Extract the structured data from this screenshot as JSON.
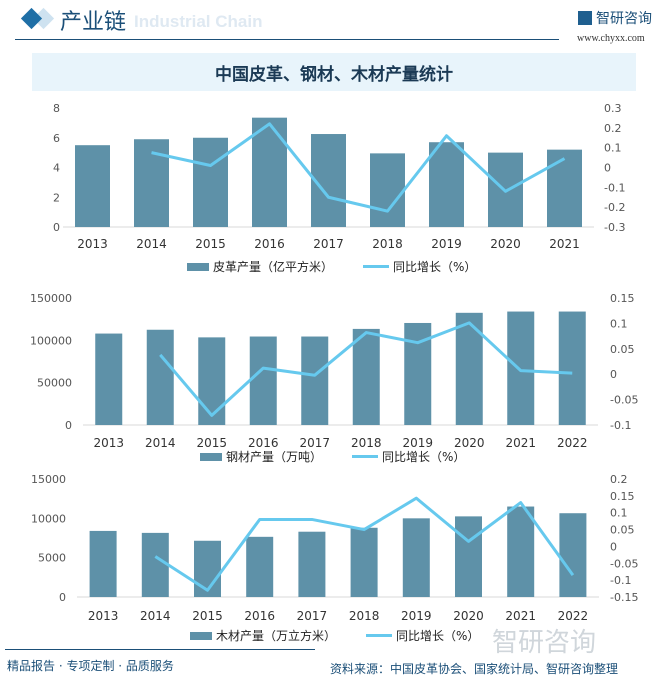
{
  "header": {
    "title": "产业链",
    "subtitle": "Industrial Chain",
    "logo_text": "智研咨询",
    "url": "www.chyxx.com"
  },
  "main_title": "中国皮革、钢材、木材产量统计",
  "footer": {
    "left": "精品报告 · 专项定制 · 品质服务",
    "source": "资料来源：中国皮革协会、国家统计局、智研咨询整理",
    "watermark": "智研咨询"
  },
  "colors": {
    "bar": "#5e91a8",
    "line": "#66c9ee"
  },
  "chart_data": [
    {
      "type": "bar+line",
      "categories": [
        "2013",
        "2014",
        "2015",
        "2016",
        "2017",
        "2018",
        "2019",
        "2020",
        "2021"
      ],
      "bar_name": "皮革产量（亿平方米）",
      "line_name": "同比增长（%）",
      "bars": [
        5.5,
        5.9,
        6.0,
        7.35,
        6.25,
        4.95,
        5.7,
        5.0,
        5.2
      ],
      "line": [
        null,
        0.075,
        0.01,
        0.22,
        -0.15,
        -0.22,
        0.16,
        -0.12,
        0.045
      ],
      "ylim": [
        0,
        8
      ],
      "yticks": [
        "0",
        "2",
        "4",
        "6",
        "8"
      ],
      "y2lim": [
        -0.3,
        0.3
      ],
      "y2ticks": [
        "-0.3",
        "-0.2",
        "-0.1",
        "0",
        "0.1",
        "0.2",
        "0.3"
      ]
    },
    {
      "type": "bar+line",
      "categories": [
        "2013",
        "2014",
        "2015",
        "2016",
        "2017",
        "2018",
        "2019",
        "2020",
        "2021",
        "2022"
      ],
      "bar_name": "钢材产量（万吨）",
      "line_name": "同比增长（%）",
      "bars": [
        108000,
        112500,
        103500,
        104500,
        104500,
        113500,
        120500,
        132500,
        134000,
        134000
      ],
      "line": [
        null,
        0.038,
        -0.081,
        0.012,
        -0.002,
        0.082,
        0.062,
        0.101,
        0.007,
        0.002
      ],
      "ylim": [
        0,
        150000
      ],
      "yticks": [
        "0",
        "50000",
        "100000",
        "150000"
      ],
      "y2lim": [
        -0.1,
        0.15
      ],
      "y2ticks": [
        "-0.1",
        "-0.05",
        "0",
        "0.05",
        "0.1",
        "0.15"
      ]
    },
    {
      "type": "bar+line",
      "categories": [
        "2013",
        "2014",
        "2015",
        "2016",
        "2017",
        "2018",
        "2019",
        "2020",
        "2021",
        "2022"
      ],
      "bar_name": "木材产量（万立方米）",
      "line_name": "同比增长（%）",
      "bars": [
        8400,
        8150,
        7150,
        7650,
        8300,
        8800,
        10000,
        10250,
        11500,
        10650
      ],
      "line": [
        null,
        -0.03,
        -0.13,
        0.08,
        0.08,
        0.05,
        0.143,
        0.015,
        0.13,
        -0.085
      ],
      "ylim": [
        0,
        15000
      ],
      "yticks": [
        "0",
        "5000",
        "10000",
        "15000"
      ],
      "y2lim": [
        -0.15,
        0.2
      ],
      "y2ticks": [
        "-0.15",
        "-0.1",
        "-0.05",
        "0",
        "0.05",
        "0.1",
        "0.15",
        "0.2"
      ]
    }
  ]
}
